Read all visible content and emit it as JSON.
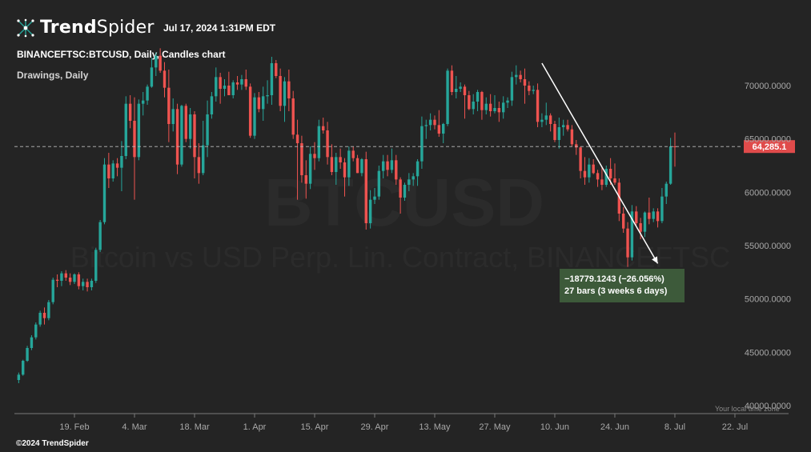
{
  "app": {
    "brand_bold": "Trend",
    "brand_light": "Spider",
    "datetime": "Jul 17, 2024 1:31PM EDT",
    "symbol_line": "BINANCEFTSC:BTCUSD, Daily, Candles chart",
    "drawings_line": "Drawings, Daily",
    "copyright": "©2024 TrendSpider",
    "timezone_note": "Your local time zone"
  },
  "watermark": {
    "ticker": "BTCUSD",
    "description": "Bitcoin vs USD Perp. Lin. Contract, BINANCEFTSC"
  },
  "colors": {
    "background": "#242424",
    "up": "#26a69a",
    "down": "#ef5350",
    "price_tag": "#e04b4b",
    "measure_box": "#3d5a3a",
    "axis_text": "#a8a8a8"
  },
  "chart_data": {
    "type": "candlestick",
    "y_axis": {
      "min": 40000,
      "max": 72000,
      "ticks": [
        {
          "value": 70000,
          "label": "70000.0000"
        },
        {
          "value": 65000,
          "label": "65000.0000"
        },
        {
          "value": 60000,
          "label": "60000.0000"
        },
        {
          "value": 55000,
          "label": "55000.0000"
        },
        {
          "value": 50000,
          "label": "50000.0000"
        },
        {
          "value": 45000,
          "label": "45000.0000"
        },
        {
          "value": 40000,
          "label": "40000.0000"
        }
      ]
    },
    "x_axis": {
      "start_date": "2024-02-05",
      "end_date": "2024-07-21",
      "ticks": [
        {
          "date": "2024-02-19",
          "label": "19. Feb"
        },
        {
          "date": "2024-03-04",
          "label": "4. Mar"
        },
        {
          "date": "2024-03-18",
          "label": "18. Mar"
        },
        {
          "date": "2024-04-01",
          "label": "1. Apr"
        },
        {
          "date": "2024-04-15",
          "label": "15. Apr"
        },
        {
          "date": "2024-04-29",
          "label": "29. Apr"
        },
        {
          "date": "2024-05-13",
          "label": "13. May"
        },
        {
          "date": "2024-05-27",
          "label": "27. May"
        },
        {
          "date": "2024-06-10",
          "label": "10. Jun"
        },
        {
          "date": "2024-06-24",
          "label": "24. Jun"
        },
        {
          "date": "2024-07-08",
          "label": "8. Jul"
        },
        {
          "date": "2024-07-22",
          "label": "22. Jul"
        }
      ]
    },
    "first_candle_date": "2024-02-06",
    "candles": [
      [
        42400,
        43100,
        42100,
        42900
      ],
      [
        42900,
        44300,
        42800,
        44200
      ],
      [
        44200,
        45600,
        44100,
        45400
      ],
      [
        45400,
        46600,
        45200,
        46400
      ],
      [
        46400,
        47800,
        46200,
        47600
      ],
      [
        47600,
        48900,
        47400,
        48700
      ],
      [
        48700,
        49200,
        47600,
        48200
      ],
      [
        48200,
        49900,
        48000,
        49700
      ],
      [
        49700,
        52000,
        49500,
        51800
      ],
      [
        51800,
        52300,
        51100,
        51700
      ],
      [
        51700,
        52600,
        51200,
        52400
      ],
      [
        52400,
        52700,
        51700,
        52000
      ],
      [
        52000,
        52400,
        51300,
        51600
      ],
      [
        51600,
        52400,
        51400,
        52300
      ],
      [
        52300,
        52500,
        50900,
        51200
      ],
      [
        51200,
        51900,
        50800,
        51600
      ],
      [
        51600,
        51900,
        50700,
        51100
      ],
      [
        51100,
        51900,
        50800,
        51700
      ],
      [
        51700,
        54800,
        51500,
        54600
      ],
      [
        54600,
        57400,
        54400,
        57200
      ],
      [
        57200,
        63200,
        57000,
        62600
      ],
      [
        62600,
        63700,
        60400,
        61300
      ],
      [
        61300,
        63000,
        61000,
        62700
      ],
      [
        62700,
        63200,
        61500,
        62300
      ],
      [
        62300,
        64800,
        60100,
        63400
      ],
      [
        63400,
        69000,
        63100,
        68300
      ],
      [
        68300,
        69100,
        66000,
        66700
      ],
      [
        66700,
        68900,
        59300,
        63300
      ],
      [
        63300,
        68700,
        63000,
        68300
      ],
      [
        68300,
        69400,
        67200,
        68600
      ],
      [
        68600,
        70100,
        68200,
        69900
      ],
      [
        69900,
        72600,
        69800,
        71700
      ],
      [
        71700,
        73100,
        70900,
        72800
      ],
      [
        72800,
        73500,
        71200,
        71400
      ],
      [
        71400,
        72200,
        68900,
        69800
      ],
      [
        69800,
        71500,
        64700,
        66400
      ],
      [
        66400,
        68800,
        65700,
        67800
      ],
      [
        67800,
        68300,
        61700,
        62600
      ],
      [
        62600,
        68200,
        62400,
        68100
      ],
      [
        68100,
        68300,
        64700,
        65000
      ],
      [
        65000,
        67900,
        64100,
        67300
      ],
      [
        67300,
        67600,
        61300,
        63300
      ],
      [
        63300,
        64600,
        60800,
        61800
      ],
      [
        61800,
        66700,
        61600,
        64400
      ],
      [
        64400,
        68600,
        63300,
        67300
      ],
      [
        67300,
        69400,
        66900,
        69000
      ],
      [
        69000,
        71700,
        68500,
        70800
      ],
      [
        70800,
        71200,
        68300,
        69700
      ],
      [
        69700,
        70600,
        69000,
        70000
      ],
      [
        70000,
        71300,
        69100,
        69100
      ],
      [
        69100,
        70500,
        68800,
        70300
      ],
      [
        70300,
        70900,
        69600,
        70100
      ],
      [
        70100,
        71000,
        69600,
        70600
      ],
      [
        70600,
        71500,
        69600,
        69900
      ],
      [
        69900,
        70200,
        65100,
        65300
      ],
      [
        65300,
        69300,
        65000,
        68900
      ],
      [
        68900,
        69400,
        67500,
        67800
      ],
      [
        67800,
        69900,
        66700,
        69000
      ],
      [
        69000,
        70500,
        68300,
        69100
      ],
      [
        69100,
        72700,
        68200,
        72100
      ],
      [
        72100,
        72400,
        70700,
        70900
      ],
      [
        70900,
        71600,
        67600,
        68100
      ],
      [
        68100,
        70800,
        66600,
        70400
      ],
      [
        70400,
        71500,
        67600,
        68800
      ],
      [
        68800,
        69500,
        65000,
        65400
      ],
      [
        65400,
        66800,
        59300,
        64600
      ],
      [
        64600,
        65300,
        60900,
        61600
      ],
      [
        61600,
        63000,
        59400,
        60800
      ],
      [
        60800,
        64300,
        60300,
        63600
      ],
      [
        63600,
        64700,
        62100,
        63200
      ],
      [
        63200,
        66800,
        62900,
        66200
      ],
      [
        66200,
        67000,
        65500,
        65800
      ],
      [
        65800,
        66600,
        62600,
        63300
      ],
      [
        63300,
        64500,
        61600,
        61900
      ],
      [
        61900,
        63700,
        60700,
        63300
      ],
      [
        63300,
        64100,
        62200,
        62800
      ],
      [
        62800,
        63200,
        59600,
        61400
      ],
      [
        61400,
        64300,
        60600,
        63900
      ],
      [
        63900,
        64300,
        62900,
        63200
      ],
      [
        63200,
        63500,
        61800,
        61800
      ],
      [
        61800,
        63200,
        61500,
        63100
      ],
      [
        63100,
        63800,
        56500,
        57100
      ],
      [
        57100,
        60200,
        56600,
        59300
      ],
      [
        59300,
        60400,
        58900,
        59600
      ],
      [
        59600,
        62500,
        59300,
        62000
      ],
      [
        62000,
        63500,
        61300,
        62900
      ],
      [
        62900,
        63500,
        61500,
        62100
      ],
      [
        62100,
        64100,
        61800,
        63000
      ],
      [
        63000,
        63500,
        60700,
        61200
      ],
      [
        61200,
        61400,
        58000,
        59500
      ],
      [
        59500,
        60900,
        59200,
        60700
      ],
      [
        60700,
        61800,
        60100,
        61200
      ],
      [
        61200,
        61800,
        60600,
        61500
      ],
      [
        61500,
        63100,
        60600,
        62900
      ],
      [
        62900,
        67100,
        62200,
        66200
      ],
      [
        66200,
        66800,
        65000,
        66300
      ],
      [
        66300,
        67400,
        65800,
        66800
      ],
      [
        66800,
        67200,
        65900,
        66300
      ],
      [
        66300,
        67700,
        65200,
        65500
      ],
      [
        65500,
        66500,
        64600,
        66400
      ],
      [
        66400,
        71600,
        66200,
        71400
      ],
      [
        71400,
        71900,
        69100,
        69400
      ],
      [
        69400,
        70900,
        68800,
        69700
      ],
      [
        69700,
        70300,
        69400,
        69900
      ],
      [
        69900,
        70100,
        66900,
        69100
      ],
      [
        69100,
        69500,
        67700,
        67800
      ],
      [
        67800,
        69200,
        67300,
        68500
      ],
      [
        68500,
        69600,
        67600,
        69400
      ],
      [
        69400,
        69500,
        66800,
        67700
      ],
      [
        67700,
        68900,
        67300,
        68300
      ],
      [
        68300,
        69200,
        67100,
        67600
      ],
      [
        67600,
        69100,
        67400,
        67900
      ],
      [
        67900,
        68500,
        66600,
        67500
      ],
      [
        67500,
        69000,
        66900,
        68400
      ],
      [
        68400,
        68900,
        67900,
        68600
      ],
      [
        68600,
        71300,
        68100,
        70800
      ],
      [
        70800,
        71900,
        70100,
        71000
      ],
      [
        71000,
        71400,
        70300,
        70600
      ],
      [
        70600,
        71600,
        68300,
        70000
      ],
      [
        70000,
        70400,
        69100,
        69500
      ],
      [
        69500,
        70000,
        69200,
        69600
      ],
      [
        69600,
        70200,
        66100,
        66600
      ],
      [
        66600,
        67400,
        66100,
        66800
      ],
      [
        66800,
        68400,
        66300,
        67200
      ],
      [
        67200,
        67400,
        65700,
        66400
      ],
      [
        66400,
        66700,
        64700,
        64900
      ],
      [
        64900,
        67000,
        64100,
        66100
      ],
      [
        66100,
        66800,
        65300,
        66300
      ],
      [
        66300,
        66800,
        65700,
        65900
      ],
      [
        65900,
        66300,
        64300,
        64500
      ],
      [
        64500,
        64900,
        63500,
        64200
      ],
      [
        64200,
        64300,
        61300,
        62000
      ],
      [
        62000,
        63300,
        60700,
        61400
      ],
      [
        61400,
        63200,
        60900,
        62600
      ],
      [
        62600,
        63100,
        61700,
        61800
      ],
      [
        61800,
        62100,
        60500,
        61200
      ],
      [
        61200,
        62400,
        60200,
        60700
      ],
      [
        60700,
        62500,
        60500,
        62200
      ],
      [
        62200,
        63200,
        60700,
        61300
      ],
      [
        61300,
        62700,
        60700,
        60900
      ],
      [
        60900,
        61300,
        57300,
        58000
      ],
      [
        58000,
        58600,
        56200,
        56600
      ],
      [
        56600,
        57200,
        53000,
        53900
      ],
      [
        53900,
        58800,
        53600,
        58200
      ],
      [
        58200,
        58700,
        56900,
        57100
      ],
      [
        57100,
        57600,
        55600,
        56300
      ],
      [
        56300,
        58200,
        55800,
        58100
      ],
      [
        58100,
        59500,
        57000,
        57500
      ],
      [
        57500,
        58500,
        57200,
        58200
      ],
      [
        58200,
        58500,
        56700,
        57300
      ],
      [
        57300,
        60400,
        57100,
        59600
      ],
      [
        59600,
        61000,
        58900,
        60800
      ],
      [
        60800,
        65100,
        60700,
        64300
      ],
      [
        64300,
        65600,
        62400,
        64285
      ]
    ],
    "current_price": 64285.1,
    "current_price_label": "64,285.1",
    "measure": {
      "label_line1": "−18779.1243 (−26.056%)",
      "label_line2": "27 bars (3 weeks 6 days)",
      "start_date": "2024-06-07",
      "start_price": 72100,
      "end_date": "2024-07-04",
      "end_price": 53320
    }
  }
}
